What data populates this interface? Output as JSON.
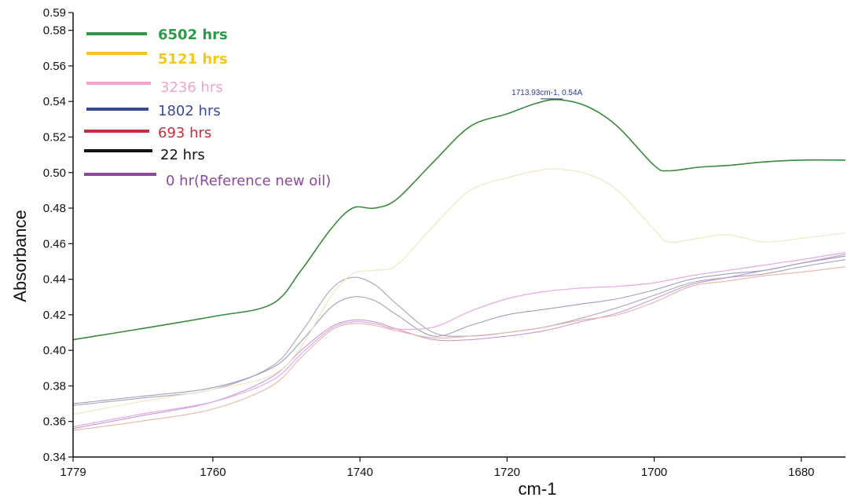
{
  "chart_data": {
    "type": "line",
    "title": "",
    "xlabel": "cm-1",
    "ylabel": "Absorbance",
    "xlim": [
      1779,
      1674
    ],
    "ylim": [
      0.34,
      0.59
    ],
    "x_reversed": true,
    "grid": false,
    "legend_position": "top-left",
    "x_ticks": [
      1779,
      1760,
      1740,
      1720,
      1700,
      1680
    ],
    "x_tick_labels": [
      "1779",
      "1760",
      "1740",
      "1720",
      "1700",
      "1680"
    ],
    "y_ticks": [
      0.34,
      0.36,
      0.38,
      0.4,
      0.42,
      0.44,
      0.46,
      0.48,
      0.5,
      0.52,
      0.54,
      0.56,
      0.58,
      0.59
    ],
    "y_tick_labels": [
      "0.34",
      "0.36",
      "0.38",
      "0.40",
      "0.42",
      "0.44",
      "0.46",
      "0.48",
      "0.50",
      "0.52",
      "0.54",
      "0.56",
      "0.58",
      "0.59"
    ],
    "series": [
      {
        "name": "6502 hrs",
        "color": "#3a8a3a",
        "legend_color": "#2e9a49",
        "legend_bold": true,
        "width": 1.6,
        "x": [
          1779,
          1770,
          1760,
          1752,
          1748,
          1744,
          1741,
          1738,
          1735,
          1730,
          1725,
          1720,
          1716,
          1713,
          1709,
          1705,
          1700,
          1698,
          1694,
          1690,
          1685,
          1680,
          1674
        ],
        "y": [
          0.406,
          0.412,
          0.419,
          0.426,
          0.445,
          0.468,
          0.48,
          0.48,
          0.485,
          0.506,
          0.526,
          0.533,
          0.539,
          0.541,
          0.537,
          0.526,
          0.504,
          0.501,
          0.503,
          0.504,
          0.506,
          0.507,
          0.507
        ]
      },
      {
        "name": "5121 hrs",
        "color": "#efe8c0",
        "legend_color": "#f2c81e",
        "legend_bold": true,
        "width": 1.2,
        "x": [
          1779,
          1770,
          1760,
          1752,
          1748,
          1744,
          1741,
          1738,
          1735,
          1730,
          1725,
          1720,
          1716,
          1713,
          1709,
          1705,
          1700,
          1698,
          1694,
          1690,
          1685,
          1680,
          1674
        ],
        "y": [
          0.364,
          0.371,
          0.378,
          0.386,
          0.402,
          0.43,
          0.443,
          0.445,
          0.448,
          0.47,
          0.49,
          0.497,
          0.501,
          0.502,
          0.499,
          0.49,
          0.468,
          0.461,
          0.463,
          0.465,
          0.461,
          0.463,
          0.466
        ]
      },
      {
        "name": "3236 hrs",
        "color": "#e6a8e6",
        "legend_color": "#f0a4cc",
        "legend_bold": false,
        "width": 1.2,
        "x": [
          1779,
          1770,
          1760,
          1752,
          1748,
          1744,
          1741,
          1738,
          1735,
          1730,
          1725,
          1720,
          1715,
          1710,
          1705,
          1700,
          1695,
          1690,
          1685,
          1680,
          1674
        ],
        "y": [
          0.357,
          0.364,
          0.371,
          0.383,
          0.398,
          0.412,
          0.416,
          0.415,
          0.412,
          0.413,
          0.422,
          0.429,
          0.433,
          0.435,
          0.436,
          0.438,
          0.442,
          0.445,
          0.448,
          0.451,
          0.455
        ]
      },
      {
        "name": "1802 hrs",
        "color": "#9aa0b8",
        "legend_color": "#3a4a9a",
        "legend_bold": false,
        "width": 1.1,
        "x": [
          1779,
          1770,
          1760,
          1752,
          1748,
          1744,
          1741,
          1738,
          1735,
          1730,
          1725,
          1720,
          1715,
          1710,
          1705,
          1700,
          1695,
          1690,
          1685,
          1680,
          1674
        ],
        "y": [
          0.37,
          0.374,
          0.379,
          0.39,
          0.405,
          0.424,
          0.43,
          0.428,
          0.42,
          0.408,
          0.414,
          0.42,
          0.423,
          0.426,
          0.429,
          0.434,
          0.44,
          0.443,
          0.445,
          0.449,
          0.453
        ]
      },
      {
        "name": "693 hrs",
        "color": "#e8b4a8",
        "legend_color": "#c0303a",
        "legend_bold": false,
        "width": 1.1,
        "x": [
          1779,
          1770,
          1760,
          1752,
          1748,
          1744,
          1741,
          1738,
          1735,
          1730,
          1725,
          1720,
          1715,
          1710,
          1705,
          1700,
          1695,
          1690,
          1685,
          1680,
          1674
        ],
        "y": [
          0.355,
          0.36,
          0.367,
          0.38,
          0.396,
          0.411,
          0.415,
          0.414,
          0.411,
          0.407,
          0.408,
          0.41,
          0.413,
          0.417,
          0.42,
          0.427,
          0.436,
          0.439,
          0.442,
          0.444,
          0.447
        ]
      },
      {
        "name": "22 hrs",
        "color": "#b0a0b8",
        "legend_color": "#111111",
        "legend_bold": false,
        "width": 1.1,
        "x": [
          1779,
          1770,
          1760,
          1752,
          1748,
          1744,
          1741,
          1738,
          1735,
          1730,
          1725,
          1720,
          1715,
          1710,
          1705,
          1700,
          1695,
          1690,
          1685,
          1680,
          1674
        ],
        "y": [
          0.369,
          0.373,
          0.378,
          0.391,
          0.41,
          0.434,
          0.441,
          0.437,
          0.426,
          0.41,
          0.408,
          0.41,
          0.413,
          0.418,
          0.424,
          0.431,
          0.438,
          0.441,
          0.443,
          0.447,
          0.451
        ]
      },
      {
        "name": "0 hr(Reference new oil)",
        "color": "#c49ad8",
        "legend_color": "#8a4a9a",
        "legend_bold": false,
        "width": 1.1,
        "x": [
          1779,
          1770,
          1760,
          1752,
          1748,
          1744,
          1741,
          1738,
          1735,
          1730,
          1725,
          1720,
          1715,
          1710,
          1705,
          1700,
          1695,
          1690,
          1685,
          1680,
          1674
        ],
        "y": [
          0.356,
          0.363,
          0.371,
          0.385,
          0.4,
          0.413,
          0.417,
          0.416,
          0.412,
          0.406,
          0.406,
          0.408,
          0.411,
          0.416,
          0.421,
          0.429,
          0.437,
          0.441,
          0.445,
          0.449,
          0.454
        ]
      }
    ],
    "annotations": [
      {
        "text": "1713.93cm-1, 0.54A",
        "x": 1713.93,
        "y": 0.541,
        "color": "#2a3a8a"
      }
    ]
  }
}
